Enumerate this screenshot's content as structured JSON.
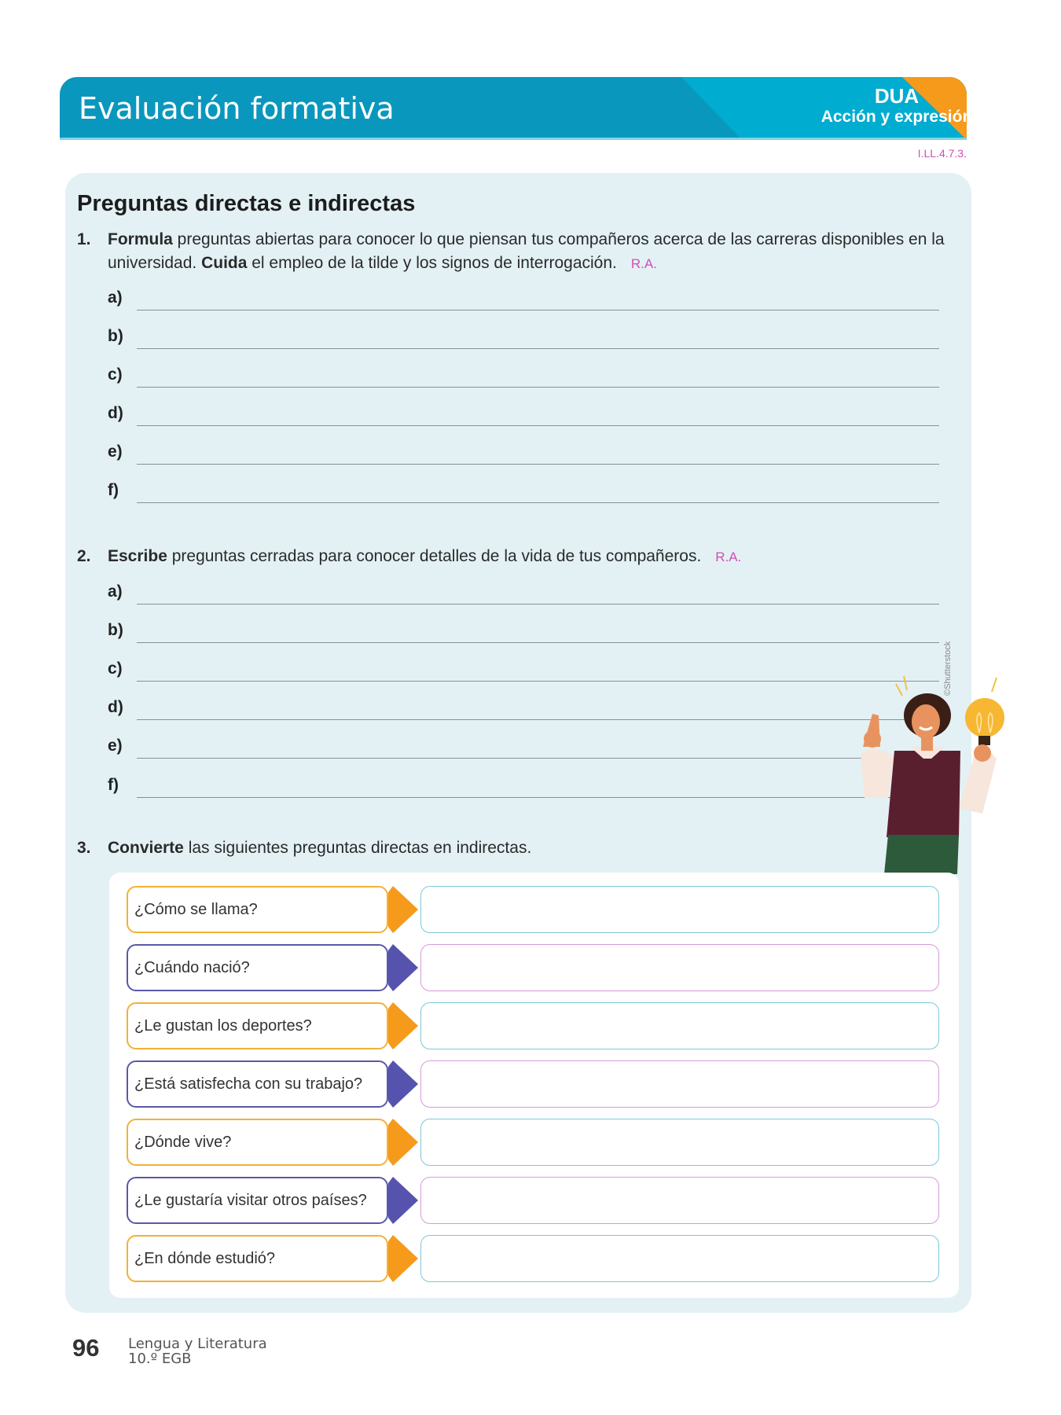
{
  "header": {
    "title": "Evaluación formativa",
    "badge_title": "DUA",
    "badge_subtitle": "Acción y expresión",
    "colors": {
      "main": "#0a97be",
      "light": "#00acd0",
      "accent": "#f59a1b"
    }
  },
  "indicator_code": "I.LL.4.7.3.",
  "section": {
    "heading": "Preguntas directas e indirectas"
  },
  "q1": {
    "number": "1.",
    "verb": "Formula",
    "text1": " preguntas abiertas para conocer lo que piensan tus compañeros acerca de las carreras disponibles en la universidad. ",
    "verb2": "Cuida",
    "text2": " el empleo de la tilde y los signos de interrogación.",
    "ra": "R.A.",
    "labels": [
      "a)",
      "b)",
      "c)",
      "d)",
      "e)",
      "f)"
    ]
  },
  "q2": {
    "number": "2.",
    "verb": "Escribe",
    "text": " preguntas cerradas para conocer detalles de la vida de tus compañeros.",
    "ra": "R.A.",
    "labels": [
      "a)",
      "b)",
      "c)",
      "d)",
      "e)",
      "f)"
    ]
  },
  "q3": {
    "number": "3.",
    "verb": "Convierte",
    "text": " las siguientes preguntas directas en indirectas.",
    "rows": [
      {
        "question": "¿Cómo se llama?",
        "color": "orange"
      },
      {
        "question": "¿Cuándo nació?",
        "color": "purple"
      },
      {
        "question": "¿Le gustan los deportes?",
        "color": "orange"
      },
      {
        "question": "¿Está satisfecha con su trabajo?",
        "color": "purple"
      },
      {
        "question": "¿Dónde vive?",
        "color": "orange"
      },
      {
        "question": "¿Le gustaría visitar otros países?",
        "color": "purple"
      },
      {
        "question": "¿En dónde estudió?",
        "color": "orange"
      }
    ]
  },
  "illustration": {
    "credit": "©Shutterstock"
  },
  "footer": {
    "page_number": "96",
    "subject": "Lengua y Literatura",
    "grade": "10.º EGB"
  }
}
